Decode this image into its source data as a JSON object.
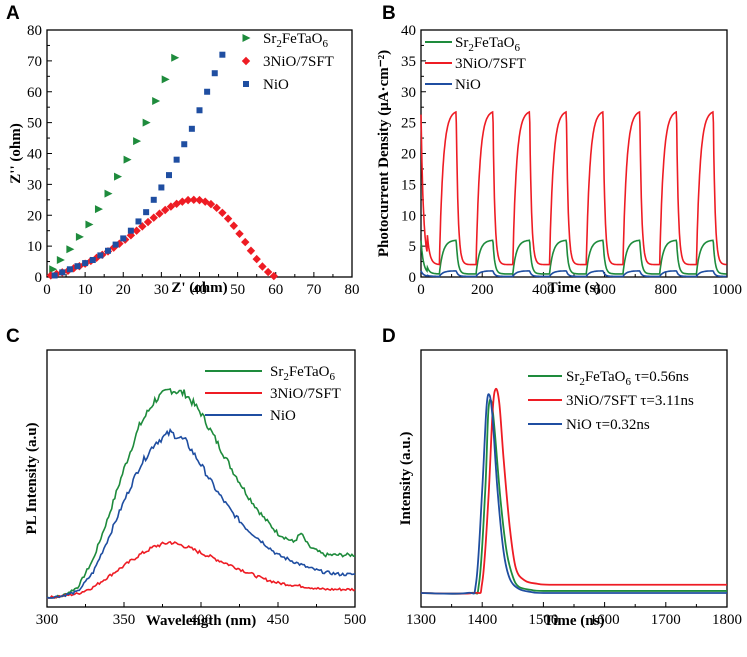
{
  "colors": {
    "green": "#1e8b3c",
    "red": "#ee1c24",
    "blue": "#1f4ea1"
  },
  "chart_data": [
    {
      "panel": "A",
      "type": "scatter",
      "xlabel": "Z' (ohm)",
      "ylabel": "Z'' (ohm)",
      "xlim": [
        0,
        80
      ],
      "ylim": [
        0,
        80
      ],
      "xticks": [
        "0",
        "10",
        "20",
        "30",
        "40",
        "50",
        "60",
        "70",
        "80"
      ],
      "yticks": [
        "0",
        "10",
        "20",
        "30",
        "40",
        "50",
        "60",
        "70",
        "80"
      ],
      "series": [
        {
          "name": "Sr2FeTaO6",
          "sub": [
            "Sr",
            "2",
            "FeTaO",
            "6"
          ],
          "color": "#1e8b3c",
          "marker": "triangle",
          "x": [
            1.5,
            3.5,
            6,
            8.5,
            11,
            13.5,
            16,
            18.5,
            21,
            23.5,
            26,
            28.5,
            31,
            33.5
          ],
          "y": [
            2.5,
            5.5,
            9,
            13,
            17,
            22,
            27,
            32.5,
            38,
            44,
            50,
            57,
            64,
            71
          ]
        },
        {
          "name": "3NiO/7SFT",
          "color": "#ee1c24",
          "marker": "diamond",
          "x": [
            1,
            2.5,
            4,
            5.5,
            7,
            8.5,
            10,
            11.5,
            13,
            14.5,
            16,
            17.5,
            19,
            20.5,
            22,
            23.5,
            25,
            26.5,
            28,
            29.5,
            31,
            32.5,
            34,
            35.5,
            37,
            38.5,
            40,
            41.5,
            43,
            44.5,
            46,
            47.5,
            49,
            50.5,
            52,
            53.5,
            55,
            56.5,
            58,
            59.5
          ],
          "y": [
            0.5,
            1,
            1.5,
            2,
            2.8,
            3.5,
            4.3,
            5.2,
            6.2,
            7.2,
            8.3,
            9.5,
            10.8,
            12.1,
            13.5,
            15,
            16.4,
            17.8,
            19.2,
            20.5,
            21.7,
            22.8,
            23.7,
            24.4,
            24.9,
            25,
            24.9,
            24.4,
            23.6,
            22.4,
            20.8,
            18.9,
            16.6,
            14,
            11.3,
            8.5,
            5.8,
            3.4,
            1.6,
            0.3
          ]
        },
        {
          "name": "NiO",
          "color": "#1f4ea1",
          "marker": "square",
          "x": [
            2,
            4,
            6,
            8,
            10,
            12,
            14,
            16,
            18,
            20,
            22,
            24,
            26,
            28,
            30,
            32,
            34,
            36,
            38,
            40,
            42,
            44,
            46
          ],
          "y": [
            0.5,
            1.5,
            2.5,
            3.5,
            4.5,
            5.5,
            7,
            8.5,
            10.5,
            12.5,
            15,
            18,
            21,
            25,
            29,
            33,
            38,
            43,
            48,
            54,
            60,
            66,
            72
          ]
        }
      ]
    },
    {
      "panel": "B",
      "type": "line",
      "xlabel": "Time (s)",
      "ylabel": "Photocurrent Density  (μA·cm⁻²)",
      "xlim": [
        0,
        1000
      ],
      "ylim": [
        0,
        40
      ],
      "xticks": [
        "0",
        "200",
        "400",
        "600",
        "800",
        "1000"
      ],
      "yticks": [
        "0",
        "5",
        "10",
        "15",
        "20",
        "25",
        "30",
        "35",
        "40"
      ],
      "period_s": 120,
      "on_s": 55,
      "first_on_s": 60,
      "series": [
        {
          "name": "Sr2FeTaO6",
          "sub": [
            "Sr",
            "2",
            "FeTaO",
            "6"
          ],
          "color": "#1e8b3c",
          "on_level": 6,
          "off_level": 0.5
        },
        {
          "name": "3NiO/7SFT",
          "color": "#ee1c24",
          "on_level": 27,
          "off_level": 2
        },
        {
          "name": "NiO",
          "color": "#1f4ea1",
          "on_level": 1,
          "off_level": 0.1
        }
      ]
    },
    {
      "panel": "C",
      "type": "line",
      "xlabel": "Wavelength (nm)",
      "ylabel": "PL Intensity (a.u)",
      "xlim": [
        300,
        500
      ],
      "xticks": [
        "300",
        "350",
        "400",
        "450",
        "500"
      ],
      "series": [
        {
          "name": "Sr2FeTaO6",
          "sub": [
            "Sr",
            "2",
            "FeTaO",
            "6"
          ],
          "color": "#1e8b3c",
          "x": [
            300,
            310,
            320,
            330,
            340,
            350,
            360,
            370,
            380,
            390,
            400,
            410,
            420,
            430,
            440,
            450,
            460,
            465,
            470,
            480,
            490,
            500
          ],
          "y": [
            0.0,
            0.01,
            0.05,
            0.18,
            0.38,
            0.6,
            0.8,
            0.92,
            0.97,
            0.95,
            0.86,
            0.73,
            0.6,
            0.48,
            0.38,
            0.3,
            0.26,
            0.3,
            0.24,
            0.2,
            0.2,
            0.2
          ]
        },
        {
          "name": "3NiO/7SFT",
          "color": "#ee1c24",
          "x": [
            300,
            310,
            320,
            330,
            340,
            350,
            360,
            370,
            380,
            390,
            400,
            410,
            420,
            430,
            440,
            450,
            460,
            470,
            480,
            490,
            500
          ],
          "y": [
            0.0,
            0.01,
            0.02,
            0.05,
            0.1,
            0.15,
            0.2,
            0.24,
            0.26,
            0.24,
            0.21,
            0.18,
            0.15,
            0.12,
            0.09,
            0.07,
            0.06,
            0.05,
            0.04,
            0.04,
            0.04
          ]
        },
        {
          "name": "NiO",
          "color": "#1f4ea1",
          "x": [
            300,
            310,
            320,
            330,
            340,
            350,
            360,
            370,
            380,
            390,
            400,
            410,
            420,
            430,
            440,
            450,
            460,
            470,
            480,
            490,
            500
          ],
          "y": [
            0.0,
            0.01,
            0.03,
            0.12,
            0.28,
            0.45,
            0.61,
            0.72,
            0.77,
            0.73,
            0.62,
            0.5,
            0.4,
            0.32,
            0.26,
            0.2,
            0.17,
            0.14,
            0.12,
            0.11,
            0.11
          ]
        }
      ]
    },
    {
      "panel": "D",
      "type": "line",
      "xlabel": "Time (ns)",
      "ylabel": "Intensity (a.u.)",
      "xlim": [
        1300,
        1800
      ],
      "xticks": [
        "1300",
        "1400",
        "1500",
        "1600",
        "1700",
        "1800"
      ],
      "series": [
        {
          "name": "Sr2FeTaO6",
          "sub": [
            "Sr",
            "2",
            "FeTaO",
            "6"
          ],
          "tau": "τ=0.56ns",
          "color": "#1e8b3c",
          "x": [
            1300,
            1380,
            1395,
            1405,
            1410,
            1415,
            1420,
            1430,
            1440,
            1450,
            1460,
            1480,
            1500,
            1600,
            1800
          ],
          "y": [
            0.0,
            0.0,
            0.05,
            0.5,
            0.88,
            0.93,
            0.8,
            0.45,
            0.2,
            0.08,
            0.03,
            0.015,
            0.01,
            0.01,
            0.01
          ]
        },
        {
          "name": "3NiO/7SFT",
          "tau": "τ=3.11ns",
          "color": "#ee1c24",
          "x": [
            1300,
            1385,
            1400,
            1410,
            1417,
            1422,
            1428,
            1435,
            1445,
            1455,
            1470,
            1490,
            1510,
            1600,
            1800
          ],
          "y": [
            0.0,
            0.0,
            0.05,
            0.45,
            0.88,
            0.99,
            0.92,
            0.65,
            0.32,
            0.12,
            0.06,
            0.045,
            0.04,
            0.04,
            0.04
          ]
        },
        {
          "name": "NiO",
          "tau": "τ=0.32ns",
          "color": "#1f4ea1",
          "x": [
            1300,
            1375,
            1390,
            1400,
            1407,
            1412,
            1417,
            1425,
            1435,
            1445,
            1460,
            1480,
            1500,
            1600,
            1800
          ],
          "y": [
            0.0,
            0.0,
            0.05,
            0.5,
            0.9,
            0.96,
            0.85,
            0.5,
            0.2,
            0.07,
            0.02,
            0.005,
            0.0,
            0.0,
            0.0
          ]
        }
      ]
    }
  ]
}
